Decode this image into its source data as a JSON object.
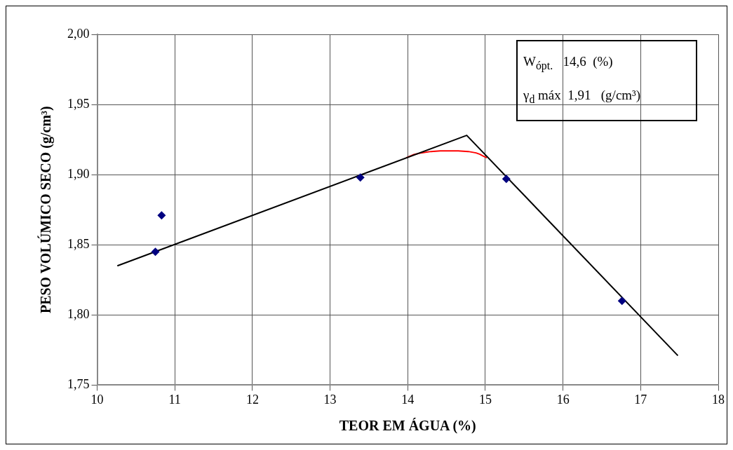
{
  "chart_data": {
    "type": "scatter",
    "xlabel": "TEOR EM ÁGUA (%)",
    "ylabel": "PESO VOLÚMICO SECO (g/cm³)",
    "xlim": [
      10,
      18
    ],
    "xticks": [
      10,
      11,
      12,
      13,
      14,
      15,
      16,
      17,
      18
    ],
    "ylim": [
      1.75,
      2.0
    ],
    "yticks": [
      {
        "value": 1.75,
        "label": "1,75"
      },
      {
        "value": 1.8,
        "label": "1,80"
      },
      {
        "value": 1.85,
        "label": "1,85"
      },
      {
        "value": 1.9,
        "label": "1,90"
      },
      {
        "value": 1.95,
        "label": "1,95"
      },
      {
        "value": 2.0,
        "label": "2,00"
      }
    ],
    "grid": true,
    "legend": false,
    "series": [
      {
        "type": "scatter",
        "color": "#000080",
        "marker": "diamond",
        "x": [
          10.75,
          10.83,
          13.39,
          15.27,
          16.76
        ],
        "values": [
          1.845,
          1.871,
          1.898,
          1.897,
          1.81
        ]
      },
      {
        "type": "line",
        "color": "#000000",
        "marker": "none",
        "x": [
          10.26,
          14.76,
          17.48
        ],
        "values": [
          1.835,
          1.928,
          1.771
        ]
      },
      {
        "type": "line",
        "color": "#ff0000",
        "marker": "none",
        "x": [
          13.98,
          14.08,
          14.17,
          14.3,
          14.42,
          14.52,
          14.65,
          14.78,
          14.88,
          14.93,
          14.98,
          15.02
        ],
        "values": [
          1.912,
          1.9143,
          1.9155,
          1.9165,
          1.917,
          1.917,
          1.917,
          1.9165,
          1.9155,
          1.9145,
          1.913,
          1.912
        ]
      }
    ],
    "annotations": [
      "W$_{ópt.}$   14,6  (%)",
      "γ$_{d}$ máx  1,91   (g/cm³)"
    ]
  }
}
